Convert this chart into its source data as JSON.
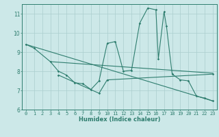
{
  "title": "",
  "xlabel": "Humidex (Indice chaleur)",
  "bg_color": "#cce8e8",
  "line_color": "#2e7d6e",
  "grid_color": "#aacece",
  "xlim": [
    -0.5,
    23.5
  ],
  "ylim": [
    6,
    11.5
  ],
  "yticks": [
    6,
    7,
    8,
    9,
    10,
    11
  ],
  "xticks": [
    0,
    1,
    2,
    3,
    4,
    5,
    6,
    7,
    8,
    9,
    10,
    11,
    12,
    13,
    14,
    15,
    16,
    17,
    18,
    19,
    20,
    21,
    22,
    23
  ],
  "line1": [
    [
      0,
      9.4
    ],
    [
      1,
      9.2
    ],
    [
      3,
      8.5
    ],
    [
      4,
      8.0
    ],
    [
      5,
      7.8
    ],
    [
      6,
      7.4
    ],
    [
      7,
      7.35
    ],
    [
      8,
      7.05
    ],
    [
      9,
      7.5
    ],
    [
      10,
      9.45
    ],
    [
      11,
      9.55
    ],
    [
      12,
      8.0
    ],
    [
      13,
      8.05
    ],
    [
      14,
      10.5
    ],
    [
      15,
      11.3
    ],
    [
      16,
      11.2
    ],
    [
      16.3,
      8.65
    ],
    [
      17,
      11.1
    ],
    [
      17.3,
      10.35
    ],
    [
      18,
      7.85
    ],
    [
      19,
      7.55
    ],
    [
      20,
      7.5
    ],
    [
      21,
      6.7
    ],
    [
      22,
      6.6
    ],
    [
      23,
      6.45
    ]
  ],
  "line2": [
    [
      0,
      9.4
    ],
    [
      23,
      6.45
    ]
  ],
  "line3": [
    [
      3,
      8.5
    ],
    [
      23,
      7.9
    ]
  ],
  "line4": [
    [
      4,
      7.8
    ],
    [
      9,
      6.85
    ],
    [
      10,
      7.55
    ],
    [
      23,
      7.85
    ]
  ],
  "xlabel_fontsize": 6,
  "tick_fontsize": 5,
  "ytick_fontsize": 5.5
}
